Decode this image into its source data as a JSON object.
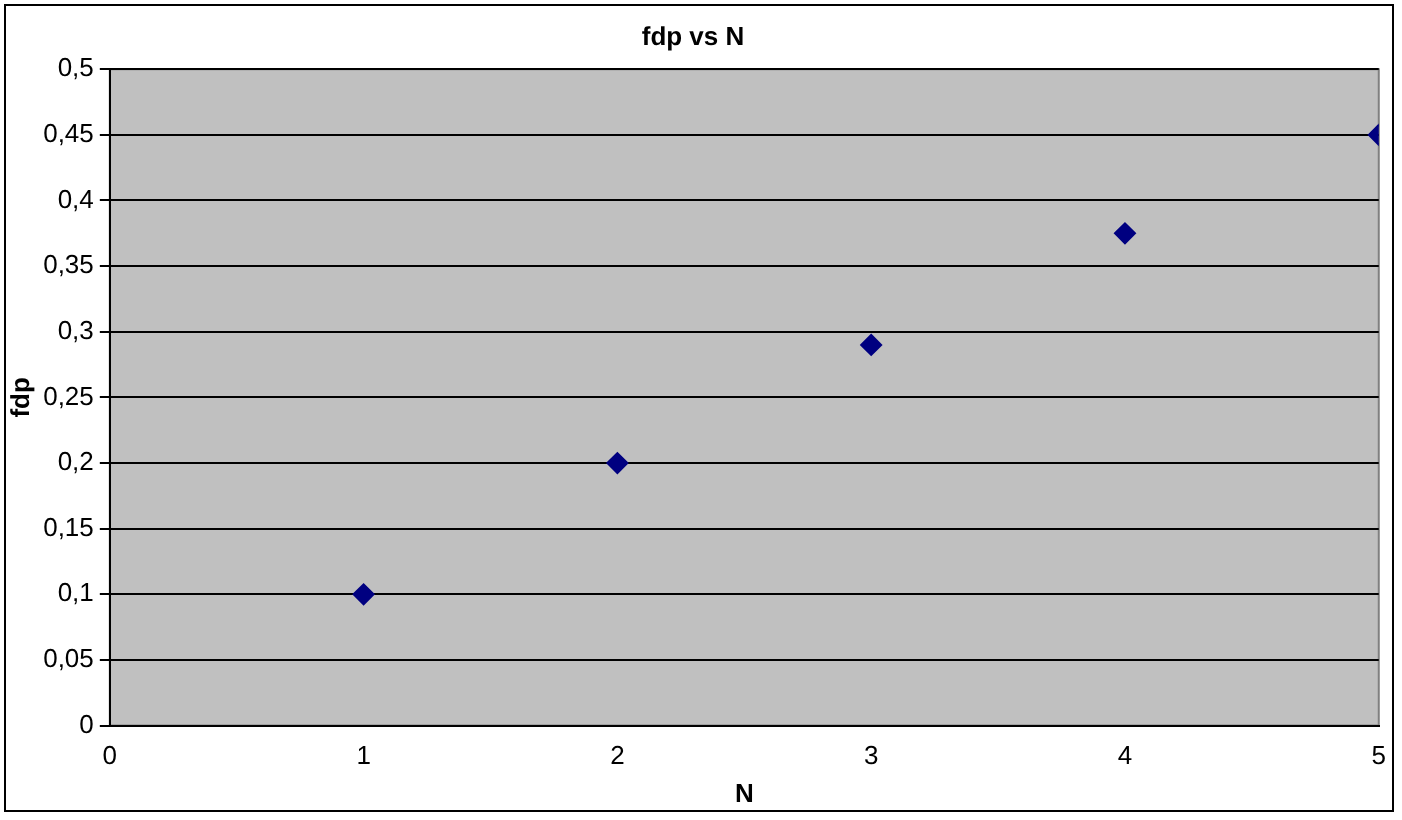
{
  "chart_data": {
    "type": "scatter",
    "title": "fdp vs N",
    "xlabel": "N",
    "ylabel": "fdp",
    "x": [
      1,
      2,
      3,
      4,
      5
    ],
    "series": [
      {
        "color": "#000080",
        "values": [
          0.1,
          0.2,
          0.29,
          0.375,
          0.45
        ]
      }
    ],
    "xlim": [
      0,
      5
    ],
    "xticks": [
      0,
      1,
      2,
      3,
      4,
      5
    ],
    "ylim": [
      0,
      0.5
    ],
    "yticks": [
      0,
      {
        "value": 0.05,
        "label": "0,05"
      },
      {
        "value": 0.1,
        "label": "0,1"
      },
      {
        "value": 0.15,
        "label": "0,15"
      },
      {
        "value": 0.2,
        "label": "0,2"
      },
      {
        "value": 0.25,
        "label": "0,25"
      },
      {
        "value": 0.3,
        "label": "0,3"
      },
      {
        "value": 0.35,
        "label": "0,35"
      },
      {
        "value": 0.4,
        "label": "0,4"
      },
      {
        "value": 0.45,
        "label": "0,45"
      },
      {
        "value": 0.5,
        "label": "0,5"
      }
    ],
    "grid": "y",
    "marker": "diamond",
    "legend": false
  }
}
